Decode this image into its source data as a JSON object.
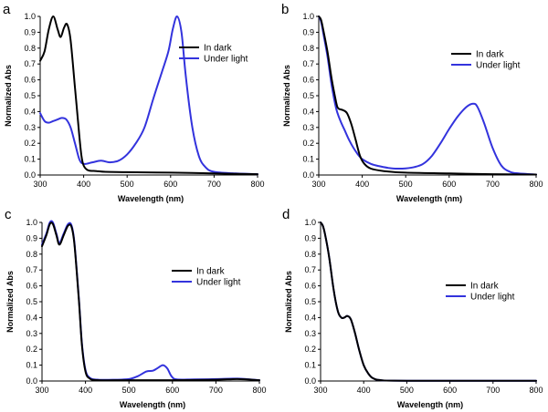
{
  "colors": {
    "dark": "#000000",
    "light": "#3333dd"
  },
  "chart_data": [
    {
      "type": "line",
      "panel": "a",
      "xlabel": "Wavelength (nm)",
      "ylabel": "Normalized Abs",
      "xlim": [
        300,
        800
      ],
      "ylim": [
        0,
        1.0
      ],
      "xticks": [
        300,
        400,
        500,
        600,
        700,
        800
      ],
      "yticks": [
        "0.0",
        "0.1",
        "0.2",
        "0.3",
        "0.4",
        "0.5",
        "0.6",
        "0.7",
        "0.8",
        "0.9",
        "1.0"
      ],
      "legend": "top-right",
      "series": [
        {
          "name": "In dark",
          "color": "#000000",
          "points": [
            [
              300,
              0.72
            ],
            [
              310,
              0.78
            ],
            [
              320,
              0.92
            ],
            [
              330,
              1.0
            ],
            [
              340,
              0.92
            ],
            [
              347,
              0.87
            ],
            [
              355,
              0.93
            ],
            [
              362,
              0.95
            ],
            [
              370,
              0.85
            ],
            [
              380,
              0.55
            ],
            [
              390,
              0.25
            ],
            [
              395,
              0.12
            ],
            [
              400,
              0.06
            ],
            [
              410,
              0.03
            ],
            [
              430,
              0.025
            ],
            [
              450,
              0.02
            ],
            [
              500,
              0.018
            ],
            [
              600,
              0.015
            ],
            [
              700,
              0.01
            ],
            [
              800,
              0.005
            ]
          ]
        },
        {
          "name": "Under light",
          "color": "#3333dd",
          "points": [
            [
              300,
              0.39
            ],
            [
              310,
              0.34
            ],
            [
              320,
              0.33
            ],
            [
              330,
              0.34
            ],
            [
              340,
              0.35
            ],
            [
              350,
              0.36
            ],
            [
              360,
              0.35
            ],
            [
              370,
              0.3
            ],
            [
              380,
              0.2
            ],
            [
              390,
              0.1
            ],
            [
              400,
              0.07
            ],
            [
              420,
              0.08
            ],
            [
              440,
              0.09
            ],
            [
              460,
              0.08
            ],
            [
              480,
              0.09
            ],
            [
              500,
              0.13
            ],
            [
              520,
              0.2
            ],
            [
              540,
              0.3
            ],
            [
              560,
              0.48
            ],
            [
              580,
              0.65
            ],
            [
              595,
              0.78
            ],
            [
              605,
              0.92
            ],
            [
              615,
              1.0
            ],
            [
              625,
              0.9
            ],
            [
              635,
              0.62
            ],
            [
              650,
              0.3
            ],
            [
              665,
              0.12
            ],
            [
              680,
              0.05
            ],
            [
              700,
              0.02
            ],
            [
              750,
              0.01
            ],
            [
              800,
              0.005
            ]
          ]
        }
      ]
    },
    {
      "type": "line",
      "panel": "b",
      "xlabel": "Wavelength (nm)",
      "ylabel": "Normalized Abs",
      "xlim": [
        300,
        800
      ],
      "ylim": [
        0,
        1.0
      ],
      "xticks": [
        300,
        400,
        500,
        600,
        700,
        800
      ],
      "yticks": [
        "0.0",
        "0.1",
        "0.2",
        "0.3",
        "0.4",
        "0.5",
        "0.6",
        "0.7",
        "0.8",
        "0.9",
        "1.0"
      ],
      "legend": "top-right",
      "series": [
        {
          "name": "In dark",
          "color": "#000000",
          "points": [
            [
              300,
              1.0
            ],
            [
              305,
              0.98
            ],
            [
              310,
              0.92
            ],
            [
              320,
              0.78
            ],
            [
              330,
              0.6
            ],
            [
              340,
              0.46
            ],
            [
              345,
              0.42
            ],
            [
              355,
              0.41
            ],
            [
              365,
              0.39
            ],
            [
              375,
              0.32
            ],
            [
              385,
              0.22
            ],
            [
              395,
              0.12
            ],
            [
              405,
              0.07
            ],
            [
              420,
              0.04
            ],
            [
              450,
              0.025
            ],
            [
              500,
              0.015
            ],
            [
              600,
              0.01
            ],
            [
              700,
              0.005
            ],
            [
              800,
              0.003
            ]
          ]
        },
        {
          "name": "Under light",
          "color": "#3333dd",
          "points": [
            [
              300,
              1.0
            ],
            [
              305,
              0.97
            ],
            [
              310,
              0.9
            ],
            [
              320,
              0.75
            ],
            [
              330,
              0.56
            ],
            [
              340,
              0.42
            ],
            [
              350,
              0.34
            ],
            [
              360,
              0.28
            ],
            [
              370,
              0.22
            ],
            [
              380,
              0.17
            ],
            [
              390,
              0.13
            ],
            [
              400,
              0.1
            ],
            [
              420,
              0.07
            ],
            [
              440,
              0.055
            ],
            [
              460,
              0.045
            ],
            [
              480,
              0.04
            ],
            [
              500,
              0.042
            ],
            [
              520,
              0.05
            ],
            [
              540,
              0.07
            ],
            [
              560,
              0.12
            ],
            [
              580,
              0.2
            ],
            [
              600,
              0.29
            ],
            [
              620,
              0.37
            ],
            [
              640,
              0.43
            ],
            [
              655,
              0.45
            ],
            [
              665,
              0.43
            ],
            [
              680,
              0.33
            ],
            [
              700,
              0.17
            ],
            [
              720,
              0.06
            ],
            [
              740,
              0.02
            ],
            [
              760,
              0.01
            ],
            [
              800,
              0.003
            ]
          ]
        }
      ]
    },
    {
      "type": "line",
      "panel": "c",
      "xlabel": "Wavelength (nm)",
      "ylabel": "Normalized Abs",
      "xlim": [
        300,
        800
      ],
      "ylim": [
        0,
        1.0
      ],
      "xticks": [
        300,
        400,
        500,
        600,
        700,
        800
      ],
      "yticks": [
        "0.0",
        "0.1",
        "0.2",
        "0.3",
        "0.4",
        "0.5",
        "0.6",
        "0.7",
        "0.8",
        "0.9",
        "1.0"
      ],
      "legend": "top-right",
      "series": [
        {
          "name": "In dark",
          "color": "#000000",
          "points": [
            [
              300,
              0.85
            ],
            [
              310,
              0.92
            ],
            [
              318,
              0.99
            ],
            [
              325,
              0.99
            ],
            [
              333,
              0.92
            ],
            [
              340,
              0.86
            ],
            [
              350,
              0.92
            ],
            [
              360,
              0.98
            ],
            [
              368,
              0.97
            ],
            [
              375,
              0.85
            ],
            [
              385,
              0.5
            ],
            [
              392,
              0.22
            ],
            [
              400,
              0.06
            ],
            [
              410,
              0.015
            ],
            [
              430,
              0.005
            ],
            [
              500,
              0.005
            ],
            [
              600,
              0.005
            ],
            [
              700,
              0.008
            ],
            [
              750,
              0.012
            ],
            [
              800,
              0.005
            ]
          ]
        },
        {
          "name": "Under light",
          "color": "#3333dd",
          "points": [
            [
              300,
              0.86
            ],
            [
              310,
              0.93
            ],
            [
              318,
              1.0
            ],
            [
              325,
              1.0
            ],
            [
              333,
              0.93
            ],
            [
              340,
              0.87
            ],
            [
              350,
              0.93
            ],
            [
              360,
              0.99
            ],
            [
              368,
              0.98
            ],
            [
              375,
              0.86
            ],
            [
              385,
              0.51
            ],
            [
              392,
              0.23
            ],
            [
              400,
              0.07
            ],
            [
              410,
              0.02
            ],
            [
              430,
              0.008
            ],
            [
              470,
              0.008
            ],
            [
              500,
              0.012
            ],
            [
              520,
              0.03
            ],
            [
              540,
              0.06
            ],
            [
              555,
              0.065
            ],
            [
              565,
              0.08
            ],
            [
              578,
              0.1
            ],
            [
              588,
              0.08
            ],
            [
              598,
              0.03
            ],
            [
              610,
              0.01
            ],
            [
              650,
              0.01
            ],
            [
              700,
              0.012
            ],
            [
              750,
              0.015
            ],
            [
              800,
              0.005
            ]
          ]
        }
      ]
    },
    {
      "type": "line",
      "panel": "d",
      "xlabel": "Wavelength (nm)",
      "ylabel": "Normalized Abs",
      "xlim": [
        300,
        800
      ],
      "ylim": [
        0,
        1.0
      ],
      "xticks": [
        300,
        400,
        500,
        600,
        700,
        800
      ],
      "yticks": [
        "0.0",
        "0.1",
        "0.2",
        "0.3",
        "0.4",
        "0.5",
        "0.6",
        "0.7",
        "0.8",
        "0.9",
        "1.0"
      ],
      "legend": "right",
      "series": [
        {
          "name": "In dark",
          "color": "#000000",
          "points": [
            [
              300,
              1.0
            ],
            [
              305,
              0.98
            ],
            [
              310,
              0.93
            ],
            [
              320,
              0.78
            ],
            [
              330,
              0.58
            ],
            [
              340,
              0.44
            ],
            [
              348,
              0.4
            ],
            [
              355,
              0.4
            ],
            [
              362,
              0.41
            ],
            [
              370,
              0.39
            ],
            [
              380,
              0.3
            ],
            [
              390,
              0.19
            ],
            [
              400,
              0.1
            ],
            [
              410,
              0.05
            ],
            [
              420,
              0.02
            ],
            [
              440,
              0.005
            ],
            [
              500,
              0.002
            ],
            [
              800,
              0.001
            ]
          ]
        },
        {
          "name": "Under light",
          "color": "#3333dd",
          "points": [
            [
              300,
              1.0
            ],
            [
              305,
              0.98
            ],
            [
              310,
              0.93
            ],
            [
              320,
              0.78
            ],
            [
              330,
              0.58
            ],
            [
              340,
              0.44
            ],
            [
              348,
              0.4
            ],
            [
              355,
              0.4
            ],
            [
              362,
              0.41
            ],
            [
              370,
              0.39
            ],
            [
              380,
              0.3
            ],
            [
              390,
              0.19
            ],
            [
              400,
              0.1
            ],
            [
              410,
              0.05
            ],
            [
              420,
              0.02
            ],
            [
              440,
              0.005
            ],
            [
              500,
              0.002
            ],
            [
              800,
              0.001
            ]
          ]
        }
      ]
    }
  ]
}
